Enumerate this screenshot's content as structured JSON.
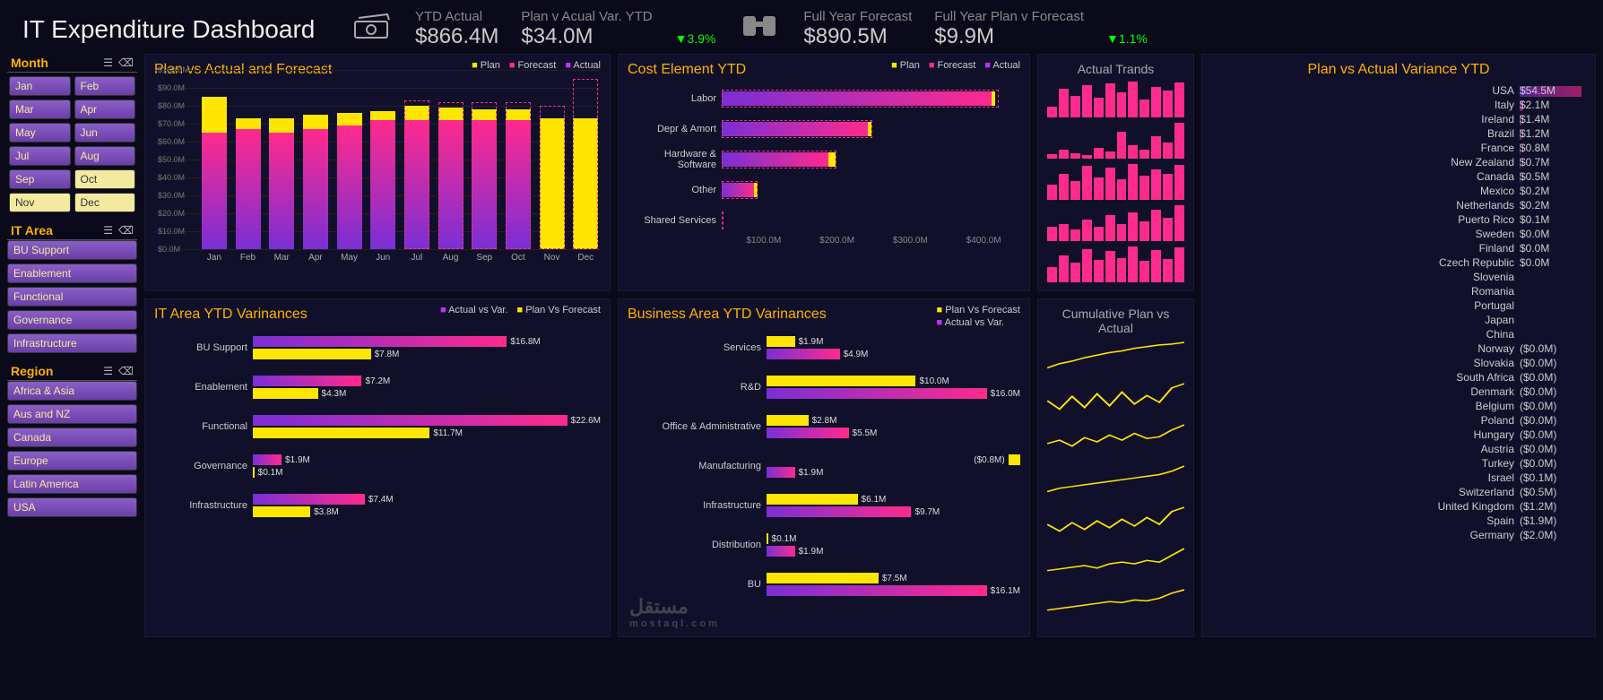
{
  "header": {
    "title": "IT Expenditure Dashboard",
    "kpis": [
      {
        "icon": "cash",
        "label": "YTD Actual",
        "value": "$866.4M"
      },
      {
        "label": "Plan v Acual Var. YTD",
        "value": "$34.0M",
        "pct": "3.9%"
      },
      {
        "icon": "bino",
        "label": "Full Year  Forecast",
        "value": "$890.5M"
      },
      {
        "label": "Full Year Plan v Forecast",
        "value": "$9.9M",
        "pct": "1.1%"
      }
    ]
  },
  "slicers": {
    "month": {
      "title": "Month",
      "items": [
        "Jan",
        "Feb",
        "Mar",
        "Apr",
        "May",
        "Jun",
        "Jul",
        "Aug",
        "Sep",
        "Oct",
        "Nov",
        "Dec"
      ],
      "selected": [
        "Oct",
        "Nov",
        "Dec"
      ]
    },
    "itarea": {
      "title": "IT Area",
      "items": [
        "BU Support",
        "Enablement",
        "Functional",
        "Governance",
        "Infrastructure"
      ]
    },
    "region": {
      "title": "Region",
      "items": [
        "Africa & Asia",
        "Aus and NZ",
        "Canada",
        "Europe",
        "Latin America",
        "USA"
      ]
    }
  },
  "p1": {
    "title": "Plan vs Actual and Forecast",
    "legend": [
      "Plan",
      "Forecast",
      "Actual"
    ],
    "ylim": 100,
    "ytick": 10,
    "yprefix": "$",
    "ysuffix": ".0M",
    "months": [
      "Jan",
      "Feb",
      "Mar",
      "Apr",
      "May",
      "Jun",
      "Jul",
      "Aug",
      "Sep",
      "Oct",
      "Nov",
      "Dec"
    ],
    "actual": [
      65,
      67,
      65,
      67,
      69,
      72,
      72,
      72,
      72,
      72,
      0,
      0
    ],
    "plan": [
      85,
      73,
      73,
      75,
      76,
      77,
      80,
      79,
      78,
      78,
      73,
      73
    ],
    "forecast": [
      0,
      0,
      0,
      0,
      0,
      0,
      83,
      82,
      82,
      82,
      80,
      95
    ]
  },
  "p2": {
    "title": "Cost Element YTD",
    "legend": [
      "Plan",
      "Forecast",
      "Actual"
    ],
    "xticks": [
      "$100.0M",
      "$200.0M",
      "$300.0M",
      "$400.0M"
    ],
    "rows": [
      {
        "label": "Labor",
        "act": 380,
        "plan": 385,
        "fc": 390,
        "max": 420
      },
      {
        "label": "Depr & Amort",
        "act": 205,
        "plan": 210,
        "fc": 212,
        "max": 420
      },
      {
        "label": "Hardware & Software",
        "act": 150,
        "plan": 160,
        "fc": 162,
        "max": 420
      },
      {
        "label": "Other",
        "act": 45,
        "plan": 50,
        "fc": 50,
        "max": 420
      },
      {
        "label": "Shared Services",
        "act": 0,
        "plan": 0,
        "fc": 0,
        "max": 420
      }
    ]
  },
  "p3": {
    "title": "IT Area YTD Varinances",
    "legend": [
      "Actual vs Var.",
      "Plan Vs Forecast"
    ],
    "max": 23,
    "rows": [
      {
        "label": "BU Support",
        "a": 16.8,
        "b": 7.8
      },
      {
        "label": "Enablement",
        "a": 7.2,
        "b": 4.3
      },
      {
        "label": "Functional",
        "a": 22.6,
        "b": 11.7
      },
      {
        "label": "Governance",
        "a": 1.9,
        "b": 0.1
      },
      {
        "label": "Infrastructure",
        "a": 7.4,
        "b": 3.8
      }
    ]
  },
  "p4": {
    "title": "Business Area YTD Varinances",
    "legend": [
      "Plan Vs Forecast",
      "Actual vs Var."
    ],
    "max": 17,
    "rows": [
      {
        "label": "Services",
        "b": 1.9,
        "a": 4.9
      },
      {
        "label": "R&D",
        "b": 10.0,
        "a": 16.0
      },
      {
        "label": "Office & Administrative",
        "b": 2.8,
        "a": 5.5
      },
      {
        "label": "Manufacturing",
        "b": -0.8,
        "a": 1.9
      },
      {
        "label": "Infrastructure",
        "b": 6.1,
        "a": 9.7
      },
      {
        "label": "Distribution",
        "b": 0.1,
        "a": 1.9
      },
      {
        "label": "BU",
        "b": 7.5,
        "a": 16.1
      }
    ]
  },
  "p5": {
    "title": "Actual Trands",
    "rows": [
      [
        30,
        80,
        60,
        90,
        55,
        95,
        70,
        100,
        50,
        85,
        75,
        98
      ],
      [
        5,
        10,
        6,
        4,
        12,
        8,
        30,
        15,
        10,
        25,
        18,
        40
      ],
      [
        40,
        70,
        50,
        90,
        60,
        85,
        55,
        95,
        65,
        80,
        70,
        92
      ],
      [
        10,
        12,
        8,
        15,
        10,
        18,
        12,
        20,
        14,
        22,
        16,
        25
      ],
      [
        35,
        60,
        45,
        75,
        50,
        70,
        55,
        80,
        48,
        72,
        52,
        78
      ]
    ]
  },
  "p6": {
    "title": "Cumulative Plan vs Actual",
    "rows": [
      [
        10,
        15,
        18,
        22,
        25,
        28,
        30,
        33,
        35,
        37,
        38,
        40
      ],
      [
        20,
        10,
        25,
        12,
        28,
        14,
        30,
        16,
        26,
        18,
        35,
        40
      ],
      [
        18,
        22,
        15,
        25,
        20,
        28,
        22,
        30,
        24,
        26,
        34,
        40
      ],
      [
        10,
        14,
        16,
        18,
        20,
        22,
        24,
        26,
        28,
        30,
        34,
        40
      ],
      [
        20,
        12,
        22,
        14,
        24,
        16,
        26,
        18,
        28,
        20,
        35,
        40
      ],
      [
        14,
        16,
        18,
        20,
        17,
        22,
        24,
        22,
        26,
        24,
        32,
        40
      ],
      [
        16,
        18,
        20,
        22,
        24,
        26,
        25,
        28,
        27,
        30,
        36,
        40
      ]
    ]
  },
  "p8": {
    "title": "Plan vs Actual Variance YTD",
    "max": 55,
    "rows": [
      {
        "c": "USA",
        "v": 54.5
      },
      {
        "c": "Italy",
        "v": 2.1
      },
      {
        "c": "Ireland",
        "v": 1.4
      },
      {
        "c": "Brazil",
        "v": 1.2
      },
      {
        "c": "France",
        "v": 0.8
      },
      {
        "c": "New Zealand",
        "v": 0.7
      },
      {
        "c": "Canada",
        "v": 0.5
      },
      {
        "c": "Mexico",
        "v": 0.2
      },
      {
        "c": "Netherlands",
        "v": 0.2
      },
      {
        "c": "Puerto Rico",
        "v": 0.1
      },
      {
        "c": "Sweden",
        "v": 0.0
      },
      {
        "c": "Finland",
        "v": 0.0
      },
      {
        "c": "Czech Republic",
        "v": 0.0
      },
      {
        "c": "Slovenia",
        "v": null
      },
      {
        "c": "Romania",
        "v": null
      },
      {
        "c": "Portugal",
        "v": null
      },
      {
        "c": "Japan",
        "v": null
      },
      {
        "c": "China",
        "v": null
      },
      {
        "c": "Norway",
        "v": -0.0
      },
      {
        "c": "Slovakia",
        "v": -0.0
      },
      {
        "c": "South Africa",
        "v": -0.0
      },
      {
        "c": "Denmark",
        "v": -0.0
      },
      {
        "c": "Belgium",
        "v": -0.0
      },
      {
        "c": "Poland",
        "v": -0.0
      },
      {
        "c": "Hungary",
        "v": -0.0
      },
      {
        "c": "Austria",
        "v": -0.0
      },
      {
        "c": "Turkey",
        "v": -0.0
      },
      {
        "c": "Israel",
        "v": -0.1
      },
      {
        "c": "Switzerland",
        "v": -0.5
      },
      {
        "c": "United Kingdom",
        "v": -1.2
      },
      {
        "c": "Spain",
        "v": -1.9
      },
      {
        "c": "Germany",
        "v": -2.0
      }
    ]
  },
  "watermark": {
    "big": "مستقل",
    "small": "mostaql.com"
  }
}
